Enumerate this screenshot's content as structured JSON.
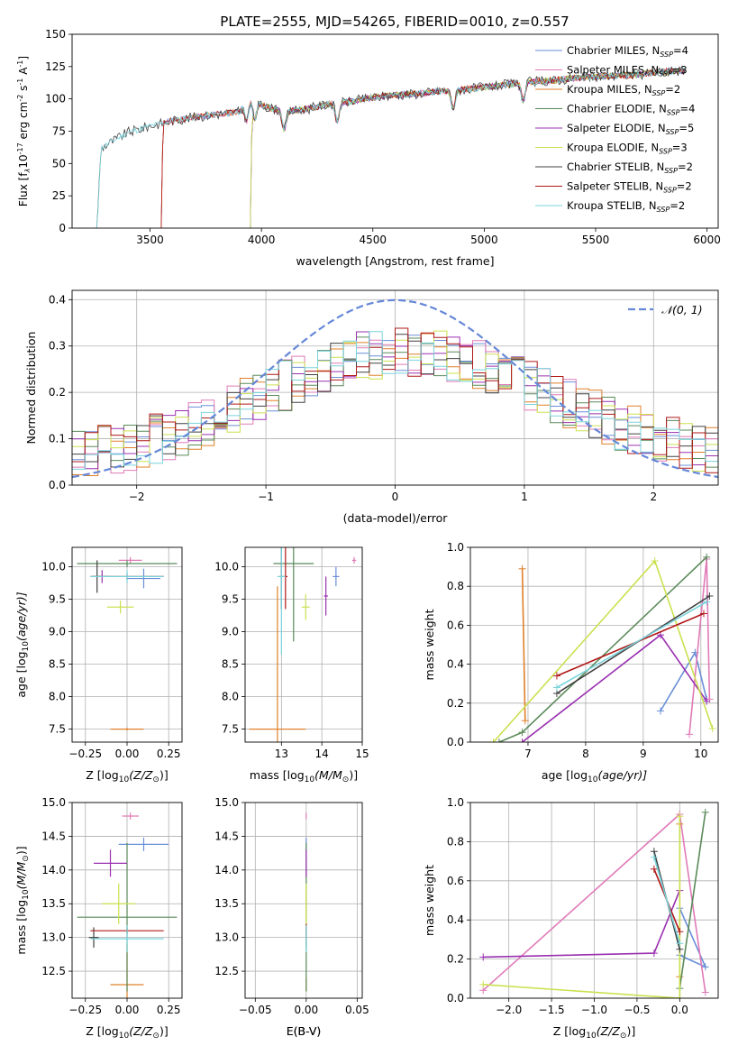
{
  "title": "PLATE=2555, MJD=54265, FIBERID=0010, z=0.557",
  "colors": {
    "chabrier_miles": "#6a8fd8",
    "salpeter_miles": "#e07ab8",
    "kroupa_miles": "#e0802a",
    "chabrier_elodie": "#5a8a5a",
    "salpeter_elodie": "#9a30b0",
    "kroupa_elodie": "#cce050",
    "chabrier_stelib": "#404040",
    "salpeter_stelib": "#b01818",
    "kroupa_stelib": "#7ad4dc"
  },
  "chart_data": [
    {
      "id": "spectrum",
      "type": "line",
      "xlabel": "wavelength [Angstrom, rest frame]",
      "ylabel_main": "Flux [f",
      "ylabel_sub": "λ",
      "ylabel_rest": "10",
      "ylabel_e1": "-17",
      "ylabel_mid": " erg cm",
      "ylabel_e2": "-2",
      "ylabel_mid2": " s",
      "ylabel_e3": "-1",
      "ylabel_mid3": " A",
      "ylabel_e4": "-1",
      "ylabel_end": "]",
      "xlim": [
        3150,
        6050
      ],
      "ylim": [
        0,
        150
      ],
      "xticks": [
        "3500",
        "4000",
        "4500",
        "5000",
        "5500",
        "6000"
      ],
      "xtick_values": [
        3500,
        4000,
        4500,
        5000,
        5500,
        6000
      ],
      "yticks": [
        "0",
        "25",
        "50",
        "75",
        "100",
        "125",
        "150"
      ],
      "ytick_values": [
        0,
        25,
        50,
        75,
        100,
        125,
        150
      ],
      "legend_position": "top-right",
      "legend": [
        {
          "name": "Chabrier MILES, N",
          "sub": "SSP",
          "eq": "=4",
          "color_key": "chabrier_miles"
        },
        {
          "name": "Salpeter MILES, N",
          "sub": "SSP",
          "eq": "=3",
          "color_key": "salpeter_miles"
        },
        {
          "name": "Kroupa MILES, N",
          "sub": "SSP",
          "eq": "=2",
          "color_key": "kroupa_miles"
        },
        {
          "name": "Chabrier ELODIE, N",
          "sub": "SSP",
          "eq": "=4",
          "color_key": "chabrier_elodie"
        },
        {
          "name": "Salpeter ELODIE, N",
          "sub": "SSP",
          "eq": "=5",
          "color_key": "salpeter_elodie"
        },
        {
          "name": "Kroupa ELODIE, N",
          "sub": "SSP",
          "eq": "=3",
          "color_key": "kroupa_elodie"
        },
        {
          "name": "Chabrier STELIB, N",
          "sub": "SSP",
          "eq": "=2",
          "color_key": "chabrier_stelib"
        },
        {
          "name": "Salpeter STELIB, N",
          "sub": "SSP",
          "eq": "=2",
          "color_key": "salpeter_stelib"
        },
        {
          "name": "Kroupa STELIB, N",
          "sub": "SSP",
          "eq": "=2",
          "color_key": "kroupa_stelib"
        }
      ],
      "continuum": {
        "x": [
          3260,
          3280,
          3400,
          3500,
          3600,
          3700,
          3800,
          3900,
          3950,
          4000,
          4100,
          4200,
          4300,
          4400,
          4500,
          4600,
          4700,
          4800,
          4900,
          5000,
          5100,
          5200,
          5300,
          5400,
          5500,
          5600,
          5700,
          5800,
          5900
        ],
        "y": [
          0,
          62,
          74,
          79,
          83,
          86,
          88,
          90,
          100,
          95,
          90,
          92,
          96,
          98,
          101,
          103,
          104,
          106,
          107,
          109,
          111,
          113,
          114,
          116,
          117,
          118,
          119,
          121,
          122
        ]
      },
      "model_start_x": {
        "chabrier_miles": 3550,
        "salpeter_miles": 3550,
        "kroupa_miles": 3550,
        "chabrier_elodie": 3950,
        "salpeter_elodie": 3950,
        "kroupa_elodie": 3950,
        "chabrier_stelib": 3260,
        "salpeter_stelib": 3550,
        "kroupa_stelib": 3260
      }
    },
    {
      "id": "residuals",
      "type": "histogram",
      "xlabel": "(data-model)/error",
      "ylabel": "Normed distribution",
      "xlim": [
        -2.5,
        2.5
      ],
      "ylim": [
        0,
        0.42
      ],
      "xticks": [
        "−2",
        "−1",
        "0",
        "1",
        "2"
      ],
      "xtick_values": [
        -2,
        -1,
        0,
        1,
        2
      ],
      "yticks": [
        "0.0",
        "0.1",
        "0.2",
        "0.3",
        "0.4"
      ],
      "ytick_values": [
        0,
        0.1,
        0.2,
        0.3,
        0.4
      ],
      "grid": true,
      "legend_position": "top-right",
      "curve_label": "𝒩(0, 1)",
      "curve_color": "#6688d8",
      "bin_edges_start": -2.5,
      "bin_width": 0.1,
      "bin_count": 50,
      "histograms": [
        {
          "color_key": "chabrier_miles",
          "seed": 1
        },
        {
          "color_key": "salpeter_miles",
          "seed": 2
        },
        {
          "color_key": "kroupa_miles",
          "seed": 3
        },
        {
          "color_key": "chabrier_elodie",
          "seed": 4
        },
        {
          "color_key": "salpeter_elodie",
          "seed": 5
        },
        {
          "color_key": "kroupa_elodie",
          "seed": 6
        },
        {
          "color_key": "chabrier_stelib",
          "seed": 7
        },
        {
          "color_key": "salpeter_stelib",
          "seed": 8
        },
        {
          "color_key": "kroupa_stelib",
          "seed": 9
        }
      ]
    },
    {
      "id": "z-age",
      "type": "errorbar",
      "xlabel": "Z [log",
      "xlabel_sub": "10",
      "xlabel_rest": "(Z/Z",
      "xlabel_sun": "⊙",
      "xlabel_end": ")]",
      "ylabel": "age  [log",
      "ylabel_sub": "10",
      "ylabel_rest": "(age/yr)]",
      "xlim": [
        -0.33,
        0.33
      ],
      "ylim": [
        7.3,
        10.3
      ],
      "xticks": [
        "−0.25",
        "0.00",
        "0.25"
      ],
      "xtick_values": [
        -0.25,
        0,
        0.25
      ],
      "yticks": [
        "7.5",
        "8.0",
        "8.5",
        "9.0",
        "9.5",
        "10.0"
      ],
      "ytick_values": [
        7.5,
        8.0,
        8.5,
        9.0,
        9.5,
        10.0
      ],
      "grid": true,
      "points": [
        {
          "color_key": "chabrier_miles",
          "x": 0.1,
          "xerr": 0.1,
          "y": 9.82,
          "yerr": 0.15
        },
        {
          "color_key": "salpeter_miles",
          "x": 0.02,
          "xerr": 0.07,
          "y": 10.1,
          "yerr": 0.05
        },
        {
          "color_key": "kroupa_miles",
          "x": 0.0,
          "xerr": 0.1,
          "y": 7.5,
          "yerr": 0.02
        },
        {
          "color_key": "chabrier_elodie",
          "x": 0.0,
          "xerr": 0.3,
          "y": 10.05,
          "yerr": 0.05
        },
        {
          "color_key": "salpeter_elodie",
          "x": -0.15,
          "xerr": 0.05,
          "y": 9.85,
          "yerr": 0.1
        },
        {
          "color_key": "kroupa_elodie",
          "x": -0.04,
          "xerr": 0.08,
          "y": 9.38,
          "yerr": 0.1
        },
        {
          "color_key": "chabrier_stelib",
          "x": -0.18,
          "xerr": 0.03,
          "y": 9.85,
          "yerr": 0.25
        },
        {
          "color_key": "salpeter_stelib",
          "x": 0.0,
          "xerr": 0.22,
          "y": 9.85,
          "yerr": 0.05
        },
        {
          "color_key": "kroupa_stelib",
          "x": 0.0,
          "xerr": 0.22,
          "y": 9.85,
          "yerr": 0.1
        }
      ]
    },
    {
      "id": "mass-age",
      "type": "errorbar",
      "xlabel": "mass [log",
      "xlabel_sub": "10",
      "xlabel_rest": "(M/M",
      "xlabel_sun": "⊙",
      "xlabel_end": ")]",
      "xlim": [
        12.1,
        15.0
      ],
      "ylim": [
        7.3,
        10.3
      ],
      "xticks": [
        "13",
        "14",
        "15"
      ],
      "xtick_values": [
        13,
        14,
        15
      ],
      "yticks": [
        "7.5",
        "8.0",
        "8.5",
        "9.0",
        "9.5",
        "10.0"
      ],
      "ytick_values": [
        7.5,
        8.0,
        8.5,
        9.0,
        9.5,
        10.0
      ],
      "grid": true,
      "points": [
        {
          "color_key": "chabrier_miles",
          "x": 14.35,
          "xerr": 0.08,
          "y": 9.85,
          "yerr": 0.15
        },
        {
          "color_key": "salpeter_miles",
          "x": 14.8,
          "xerr": 0.05,
          "y": 10.1,
          "yerr": 0.05
        },
        {
          "color_key": "kroupa_miles",
          "x": 12.9,
          "xerr": 0.7,
          "y": 7.5,
          "yerr": 2.2
        },
        {
          "color_key": "chabrier_elodie",
          "x": 13.3,
          "xerr": 0.5,
          "y": 10.05,
          "yerr": 1.2
        },
        {
          "color_key": "salpeter_elodie",
          "x": 14.1,
          "xerr": 0.05,
          "y": 9.55,
          "yerr": 0.3
        },
        {
          "color_key": "kroupa_elodie",
          "x": 13.6,
          "xerr": 0.1,
          "y": 9.38,
          "yerr": 0.2
        },
        {
          "color_key": "chabrier_stelib",
          "x": 13.0,
          "xerr": 0.05,
          "y": 9.85,
          "yerr": 0.5
        },
        {
          "color_key": "salpeter_stelib",
          "x": 13.1,
          "xerr": 0.05,
          "y": 9.85,
          "yerr": 0.5
        },
        {
          "color_key": "kroupa_stelib",
          "x": 13.0,
          "xerr": 0.1,
          "y": 9.85,
          "yerr": 1.2
        }
      ]
    },
    {
      "id": "age-weight",
      "type": "line",
      "xlabel": "age  [log",
      "xlabel_sub": "10",
      "xlabel_rest": "(age/yr)]",
      "ylabel": "mass weight",
      "xlim": [
        6.0,
        10.3
      ],
      "ylim": [
        0,
        1.0
      ],
      "xticks": [
        "7",
        "8",
        "9",
        "10"
      ],
      "xtick_values": [
        7,
        8,
        9,
        10
      ],
      "yticks": [
        "0.0",
        "0.2",
        "0.4",
        "0.6",
        "0.8",
        "1.0"
      ],
      "ytick_values": [
        0,
        0.2,
        0.4,
        0.6,
        0.8,
        1.0
      ],
      "grid": true,
      "series": [
        {
          "color_key": "chabrier_miles",
          "x": [
            9.3,
            9.9,
            10.1
          ],
          "y": [
            0.16,
            0.46,
            0.22
          ]
        },
        {
          "color_key": "salpeter_miles",
          "x": [
            9.8,
            10.1,
            10.15
          ],
          "y": [
            0.04,
            0.94,
            0.22
          ]
        },
        {
          "color_key": "kroupa_miles",
          "x": [
            6.9,
            6.95
          ],
          "y": [
            0.89,
            0.11
          ]
        },
        {
          "color_key": "chabrier_elodie",
          "x": [
            6.5,
            6.9,
            10.1
          ],
          "y": [
            0.0,
            0.05,
            0.95
          ]
        },
        {
          "color_key": "salpeter_elodie",
          "x": [
            6.9,
            9.3,
            10.1
          ],
          "y": [
            0.0,
            0.55,
            0.21
          ]
        },
        {
          "color_key": "kroupa_elodie",
          "x": [
            6.4,
            9.2,
            10.2
          ],
          "y": [
            0.0,
            0.93,
            0.07
          ]
        },
        {
          "color_key": "chabrier_stelib",
          "x": [
            7.5,
            10.15
          ],
          "y": [
            0.25,
            0.75
          ]
        },
        {
          "color_key": "salpeter_stelib",
          "x": [
            7.5,
            10.05
          ],
          "y": [
            0.34,
            0.66
          ]
        },
        {
          "color_key": "kroupa_stelib",
          "x": [
            7.5,
            10.1
          ],
          "y": [
            0.28,
            0.72
          ]
        }
      ]
    },
    {
      "id": "z-mass",
      "type": "errorbar",
      "xlabel": "Z [log",
      "xlabel_sub": "10",
      "xlabel_rest": "(Z/Z",
      "xlabel_sun": "⊙",
      "xlabel_end": ")]",
      "ylabel": "mass [log",
      "ylabel_sub": "10",
      "ylabel_rest": "(M/M",
      "ylabel_sun": "⊙",
      "ylabel_end": ")]",
      "xlim": [
        -0.33,
        0.33
      ],
      "ylim": [
        12.1,
        15.0
      ],
      "xticks": [
        "−0.25",
        "0.00",
        "0.25"
      ],
      "xtick_values": [
        -0.25,
        0,
        0.25
      ],
      "yticks": [
        "12.5",
        "13.0",
        "13.5",
        "14.0",
        "14.5",
        "15.0"
      ],
      "ytick_values": [
        12.5,
        13.0,
        13.5,
        14.0,
        14.5,
        15.0
      ],
      "grid": true,
      "points": [
        {
          "color_key": "chabrier_miles",
          "x": 0.1,
          "xerr": 0.15,
          "y": 14.38,
          "yerr": 0.1
        },
        {
          "color_key": "salpeter_miles",
          "x": 0.02,
          "xerr": 0.05,
          "y": 14.8,
          "yerr": 0.05
        },
        {
          "color_key": "kroupa_miles",
          "x": 0.0,
          "xerr": 0.1,
          "y": 12.3,
          "yerr": 0.6
        },
        {
          "color_key": "chabrier_elodie",
          "x": 0.0,
          "xerr": 0.3,
          "y": 13.3,
          "yerr": 1.1
        },
        {
          "color_key": "salpeter_elodie",
          "x": -0.1,
          "xerr": 0.1,
          "y": 14.1,
          "yerr": 0.2
        },
        {
          "color_key": "kroupa_elodie",
          "x": -0.05,
          "xerr": 0.1,
          "y": 13.5,
          "yerr": 0.3
        },
        {
          "color_key": "chabrier_stelib",
          "x": -0.2,
          "xerr": 0.03,
          "y": 13.0,
          "yerr": 0.15
        },
        {
          "color_key": "salpeter_stelib",
          "x": 0.0,
          "xerr": 0.22,
          "y": 13.1,
          "yerr": 0.05
        },
        {
          "color_key": "kroupa_stelib",
          "x": 0.0,
          "xerr": 0.22,
          "y": 12.98,
          "yerr": 0.2
        }
      ]
    },
    {
      "id": "ebv-mass",
      "type": "errorbar",
      "xlabel": "E(B-V)",
      "xlim": [
        -0.06,
        0.055
      ],
      "ylim": [
        12.1,
        15.0
      ],
      "xticks": [
        "−0.05",
        "0.00",
        "0.05"
      ],
      "xtick_values": [
        -0.05,
        0,
        0.05
      ],
      "yticks": [
        "12.5",
        "13.0",
        "13.5",
        "14.0",
        "14.5",
        "15.0"
      ],
      "ytick_values": [
        12.5,
        13.0,
        13.5,
        14.0,
        14.5,
        15.0
      ],
      "grid": true,
      "points": [
        {
          "color_key": "chabrier_miles",
          "x": 0.0,
          "xerr": 0,
          "y": 14.38,
          "yerr": 0.1
        },
        {
          "color_key": "salpeter_miles",
          "x": 0.0,
          "xerr": 0,
          "y": 14.8,
          "yerr": 0.05
        },
        {
          "color_key": "kroupa_miles",
          "x": 0.0,
          "xerr": 0,
          "y": 12.3,
          "yerr": 0.1
        },
        {
          "color_key": "chabrier_elodie",
          "x": 0.0,
          "xerr": 0,
          "y": 13.3,
          "yerr": 1.1
        },
        {
          "color_key": "salpeter_elodie",
          "x": 0.0,
          "xerr": 0,
          "y": 14.1,
          "yerr": 0.2
        },
        {
          "color_key": "kroupa_elodie",
          "x": 0.0,
          "xerr": 0,
          "y": 13.5,
          "yerr": 0.3
        },
        {
          "color_key": "chabrier_stelib",
          "x": 0.0,
          "xerr": 0,
          "y": 13.0,
          "yerr": 0.15
        },
        {
          "color_key": "salpeter_stelib",
          "x": 0.0,
          "xerr": 0,
          "y": 13.1,
          "yerr": 0.1
        },
        {
          "color_key": "kroupa_stelib",
          "x": 0.0,
          "xerr": 0,
          "y": 12.98,
          "yerr": 0.2
        }
      ]
    },
    {
      "id": "z-weight",
      "type": "line",
      "xlabel": "Z [log",
      "xlabel_sub": "10",
      "xlabel_rest": "(Z/Z",
      "xlabel_sun": "⊙",
      "xlabel_end": ")]",
      "ylabel": "mass weight",
      "xlim": [
        -2.45,
        0.45
      ],
      "ylim": [
        0,
        1.0
      ],
      "xticks": [
        "−2.0",
        "−1.5",
        "−1.0",
        "−0.5",
        "0.0"
      ],
      "xtick_values": [
        -2.0,
        -1.5,
        -1.0,
        -0.5,
        0.0
      ],
      "yticks": [
        "0.0",
        "0.2",
        "0.4",
        "0.6",
        "0.8",
        "1.0"
      ],
      "ytick_values": [
        0,
        0.2,
        0.4,
        0.6,
        0.8,
        1.0
      ],
      "grid": true,
      "series": [
        {
          "color_key": "chabrier_miles",
          "x": [
            0.0,
            0.3,
            0.0
          ],
          "y": [
            0.46,
            0.16,
            0.22
          ]
        },
        {
          "color_key": "salpeter_miles",
          "x": [
            -2.3,
            0.0,
            0.3
          ],
          "y": [
            0.04,
            0.94,
            0.03
          ]
        },
        {
          "color_key": "kroupa_miles",
          "x": [
            0.0,
            0.0
          ],
          "y": [
            0.89,
            0.11
          ]
        },
        {
          "color_key": "chabrier_elodie",
          "x": [
            0.0,
            0.0,
            0.3
          ],
          "y": [
            0.0,
            0.05,
            0.95
          ]
        },
        {
          "color_key": "salpeter_elodie",
          "x": [
            -2.3,
            -0.3,
            0.0
          ],
          "y": [
            0.21,
            0.23,
            0.55
          ]
        },
        {
          "color_key": "kroupa_elodie",
          "x": [
            -2.3,
            0.0,
            0.0
          ],
          "y": [
            0.07,
            0.0,
            0.93
          ]
        },
        {
          "color_key": "chabrier_stelib",
          "x": [
            -0.3,
            0.0
          ],
          "y": [
            0.75,
            0.25
          ]
        },
        {
          "color_key": "salpeter_stelib",
          "x": [
            -0.3,
            0.0
          ],
          "y": [
            0.66,
            0.34
          ]
        },
        {
          "color_key": "kroupa_stelib",
          "x": [
            -0.3,
            0.0
          ],
          "y": [
            0.72,
            0.28
          ]
        }
      ]
    }
  ]
}
